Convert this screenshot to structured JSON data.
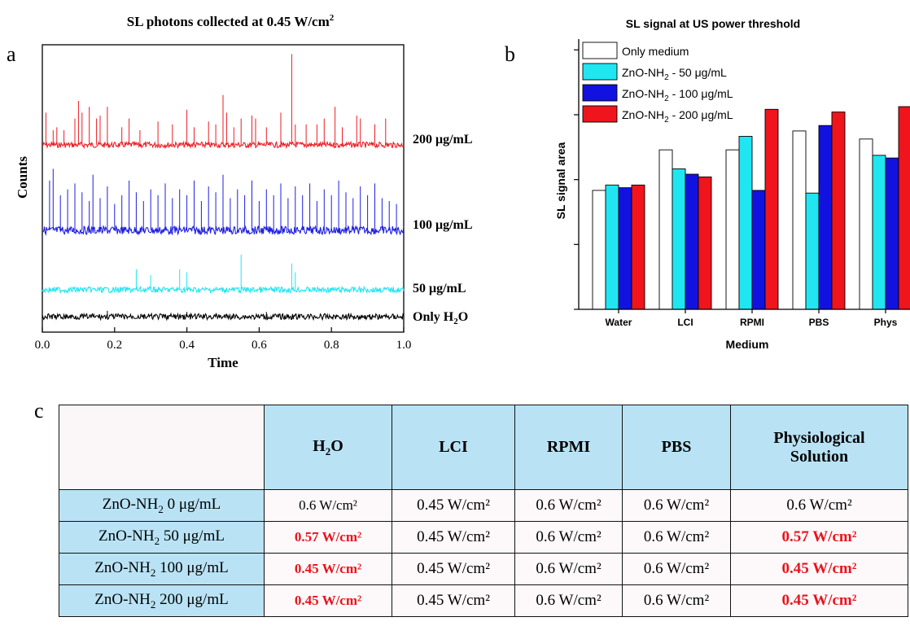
{
  "panel_a": {
    "panel_label": "a",
    "title_prefix": "SL photons collected at 0.45 W/cm",
    "title_sup": "2",
    "ylabel": "Counts",
    "xlabel": "Time"
  },
  "panel_b": {
    "panel_label": "b",
    "title": "SL signal at US power threshold",
    "ylabel": "SL signal area",
    "xlabel": "Medium"
  },
  "panel_c": {
    "panel_label": "c",
    "header": {
      "corner": "",
      "h2o_main": "H",
      "h2o_sub": "2",
      "h2o_tail": "O",
      "lci": "LCI",
      "rpmi": "RPMI",
      "pbs": "PBS",
      "phys_line1": "Physiological",
      "phys_line2": "Solution"
    },
    "rows": [
      {
        "label_pre": "ZnO-NH",
        "label_sub": "2",
        "label_post": " 0 μg/mL",
        "h2o": "0.6 W/cm²",
        "lci": "0.45 W/cm²",
        "rpmi": "0.6 W/cm²",
        "pbs": "0.6 W/cm²",
        "phys": "0.6 W/cm²"
      },
      {
        "label_pre": "ZnO-NH",
        "label_sub": "2",
        "label_post": " 50 μg/mL",
        "h2o": "0.57 W/cm²",
        "lci": "0.45 W/cm²",
        "rpmi": "0.6 W/cm²",
        "pbs": "0.6 W/cm²",
        "phys": "0.57 W/cm²"
      },
      {
        "label_pre": "ZnO-NH",
        "label_sub": "2",
        "label_post": " 100 μg/mL",
        "h2o": "0.45 W/cm²",
        "lci": "0.45 W/cm²",
        "rpmi": "0.6 W/cm²",
        "pbs": "0.6 W/cm²",
        "phys": "0.45  W/cm²"
      },
      {
        "label_pre": "ZnO-NH",
        "label_sub": "2",
        "label_post": " 200 μg/mL",
        "h2o": "0.45 W/cm²",
        "lci": "0.45 W/cm²",
        "rpmi": "0.6 W/cm²",
        "pbs": "0.6 W/cm²",
        "phys": "0.45 W/cm²"
      }
    ],
    "highlight_color": "#e8141b",
    "header_bg": "#b9e3f5"
  },
  "chart_data": [
    {
      "type": "line",
      "panel": "a",
      "title": "SL photons collected at 0.45 W/cm²",
      "xlabel": "Time",
      "ylabel": "Counts",
      "xlim": [
        0.0,
        1.0
      ],
      "xticks": [
        "0.0",
        "0.2",
        "0.4",
        "0.6",
        "0.8",
        "1.0"
      ],
      "y_ticks_shown": false,
      "series": [
        {
          "name": "200 μg/mL",
          "color": "#ee1c24",
          "level": 4,
          "spikes": [
            [
              0.01,
              0.55
            ],
            [
              0.03,
              0.25
            ],
            [
              0.04,
              0.3
            ],
            [
              0.06,
              0.25
            ],
            [
              0.09,
              0.45
            ],
            [
              0.1,
              0.75
            ],
            [
              0.11,
              0.55
            ],
            [
              0.13,
              0.65
            ],
            [
              0.15,
              0.45
            ],
            [
              0.16,
              0.5
            ],
            [
              0.18,
              0.65
            ],
            [
              0.22,
              0.3
            ],
            [
              0.24,
              0.45
            ],
            [
              0.27,
              0.25
            ],
            [
              0.32,
              0.4
            ],
            [
              0.36,
              0.35
            ],
            [
              0.4,
              0.6
            ],
            [
              0.42,
              0.3
            ],
            [
              0.46,
              0.4
            ],
            [
              0.48,
              0.35
            ],
            [
              0.5,
              0.85
            ],
            [
              0.51,
              0.55
            ],
            [
              0.53,
              0.3
            ],
            [
              0.55,
              0.45
            ],
            [
              0.58,
              0.5
            ],
            [
              0.59,
              0.45
            ],
            [
              0.62,
              0.3
            ],
            [
              0.66,
              0.55
            ],
            [
              0.69,
              1.55
            ],
            [
              0.7,
              0.35
            ],
            [
              0.73,
              0.35
            ],
            [
              0.76,
              0.35
            ],
            [
              0.78,
              0.45
            ],
            [
              0.81,
              0.65
            ],
            [
              0.83,
              0.3
            ],
            [
              0.87,
              0.5
            ],
            [
              0.88,
              0.45
            ],
            [
              0.92,
              0.35
            ],
            [
              0.95,
              0.45
            ]
          ]
        },
        {
          "name": "100 μg/mL",
          "color": "#1f1fe0",
          "level": 3,
          "spikes": [
            [
              0.02,
              0.85
            ],
            [
              0.03,
              1.05
            ],
            [
              0.05,
              0.6
            ],
            [
              0.07,
              0.7
            ],
            [
              0.09,
              0.8
            ],
            [
              0.11,
              0.65
            ],
            [
              0.13,
              0.5
            ],
            [
              0.14,
              0.95
            ],
            [
              0.16,
              0.55
            ],
            [
              0.18,
              0.75
            ],
            [
              0.2,
              0.45
            ],
            [
              0.22,
              0.6
            ],
            [
              0.24,
              0.85
            ],
            [
              0.26,
              0.65
            ],
            [
              0.28,
              0.5
            ],
            [
              0.3,
              0.7
            ],
            [
              0.32,
              0.6
            ],
            [
              0.34,
              0.8
            ],
            [
              0.36,
              0.55
            ],
            [
              0.38,
              0.7
            ],
            [
              0.4,
              0.6
            ],
            [
              0.42,
              0.85
            ],
            [
              0.44,
              0.5
            ],
            [
              0.46,
              0.75
            ],
            [
              0.48,
              0.65
            ],
            [
              0.5,
              0.95
            ],
            [
              0.52,
              0.55
            ],
            [
              0.54,
              0.7
            ],
            [
              0.56,
              0.6
            ],
            [
              0.58,
              0.85
            ],
            [
              0.6,
              0.5
            ],
            [
              0.62,
              0.7
            ],
            [
              0.64,
              0.6
            ],
            [
              0.66,
              0.8
            ],
            [
              0.68,
              0.55
            ],
            [
              0.7,
              0.75
            ],
            [
              0.72,
              0.6
            ],
            [
              0.74,
              0.8
            ],
            [
              0.76,
              0.5
            ],
            [
              0.78,
              0.7
            ],
            [
              0.8,
              0.6
            ],
            [
              0.82,
              0.85
            ],
            [
              0.84,
              0.65
            ],
            [
              0.86,
              0.55
            ],
            [
              0.88,
              0.75
            ],
            [
              0.9,
              0.6
            ],
            [
              0.92,
              0.8
            ],
            [
              0.94,
              0.55
            ],
            [
              0.96,
              0.5
            ],
            [
              0.98,
              0.45
            ]
          ]
        },
        {
          "name": "50 μg/mL",
          "color": "#20e6f2",
          "level": 2,
          "spikes": [
            [
              0.26,
              0.35
            ],
            [
              0.3,
              0.25
            ],
            [
              0.38,
              0.35
            ],
            [
              0.4,
              0.3
            ],
            [
              0.55,
              0.6
            ],
            [
              0.69,
              0.45
            ],
            [
              0.7,
              0.3
            ]
          ]
        },
        {
          "name": "Only H₂O",
          "color": "#000000",
          "level": 1,
          "spikes": [
            [
              0.18,
              0.1
            ],
            [
              0.4,
              0.08
            ],
            [
              0.62,
              0.08
            ]
          ]
        }
      ],
      "series_labels": {
        "200": "200 μg/mL",
        "100": "100 μg/mL",
        "50": "50 μg/mL",
        "h2o_pre": "Only H",
        "h2o_sub": "2",
        "h2o_post": "O"
      }
    },
    {
      "type": "bar",
      "panel": "b",
      "title": "SL signal at US power threshold",
      "xlabel": "Medium",
      "ylabel": "SL signal area",
      "categories": [
        "Water",
        "LCI",
        "RPMI",
        "PBS",
        "Phys"
      ],
      "ylim": [
        0,
        100
      ],
      "y_ticks_shown": false,
      "legend_position": "top-left",
      "series": [
        {
          "name_pre": "Only medium",
          "name_sub": "",
          "name_post": "",
          "color": "#ffffff",
          "values": [
            44,
            59,
            59,
            66,
            63
          ]
        },
        {
          "name_pre": "ZnO-NH",
          "name_sub": "2",
          "name_post": " - 50 μg/mL",
          "color": "#20e6f2",
          "values": [
            46,
            52,
            64,
            43,
            57
          ]
        },
        {
          "name_pre": "ZnO-NH",
          "name_sub": "2",
          "name_post": " - 100 μg/mL",
          "color": "#1212e0",
          "values": [
            45,
            50,
            44,
            68,
            56
          ]
        },
        {
          "name_pre": "ZnO-NH",
          "name_sub": "2",
          "name_post": " - 200 μg/mL",
          "color": "#f0141c",
          "values": [
            46,
            49,
            74,
            73,
            75
          ]
        }
      ]
    }
  ]
}
